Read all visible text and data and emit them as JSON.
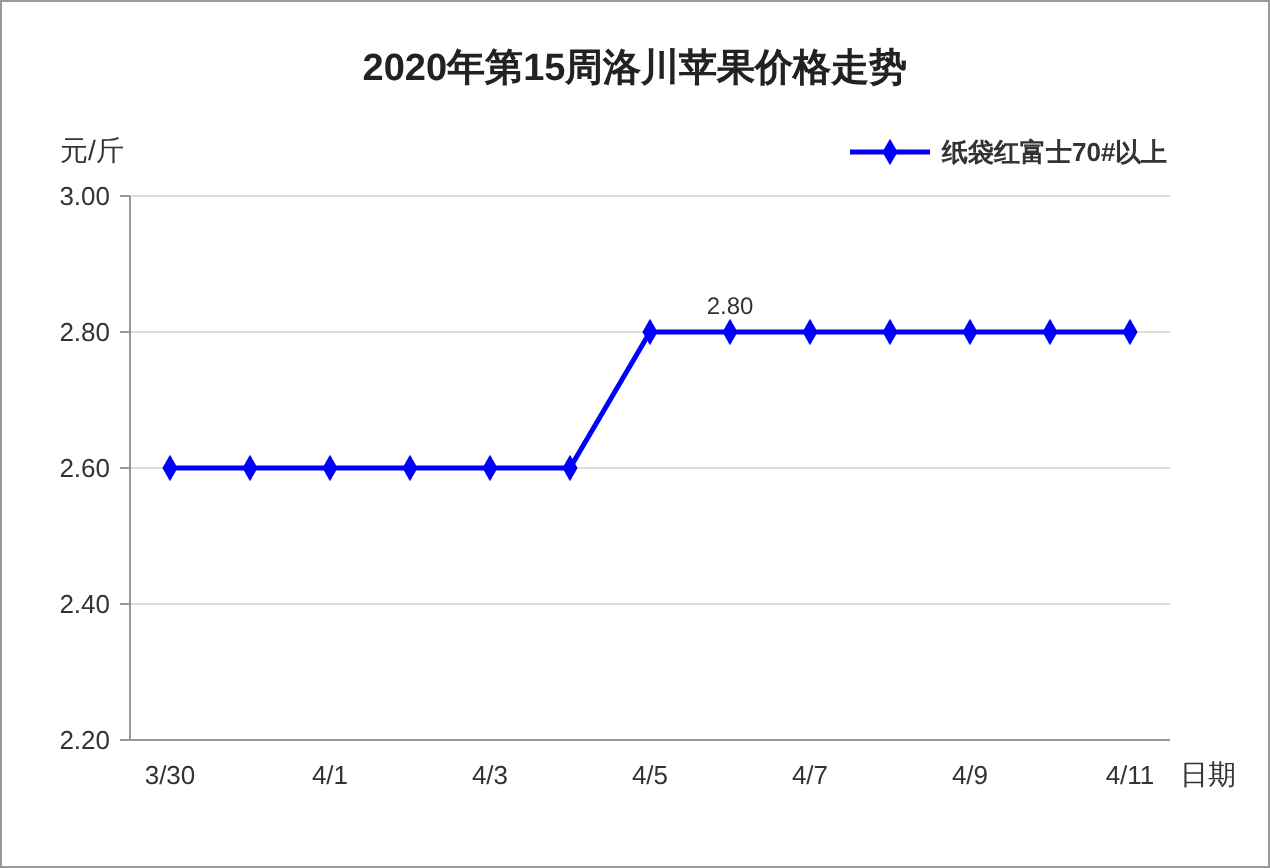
{
  "chart_data": {
    "type": "line",
    "title": "2020年第15周洛川苹果价格走势",
    "xlabel": "日期",
    "ylabel": "元/斤",
    "categories": [
      "3/30",
      null,
      "4/1",
      null,
      "4/3",
      null,
      "4/5",
      null,
      "4/7",
      null,
      "4/9",
      null,
      "4/11"
    ],
    "series": [
      {
        "name": "纸袋红富士70#以上",
        "color": "#0000ff",
        "values": [
          2.6,
          2.6,
          2.6,
          2.6,
          2.6,
          2.6,
          2.8,
          2.8,
          2.8,
          2.8,
          2.8,
          2.8,
          2.8
        ],
        "value_labels": [
          null,
          null,
          null,
          null,
          null,
          null,
          null,
          "2.80",
          null,
          null,
          null,
          null,
          null
        ]
      }
    ],
    "ylim": [
      2.2,
      3.0
    ],
    "yticks": [
      {
        "value": 2.2,
        "label": "2.20"
      },
      {
        "value": 2.4,
        "label": "2.40"
      },
      {
        "value": 2.6,
        "label": "2.60"
      },
      {
        "value": 2.8,
        "label": "2.80"
      },
      {
        "value": 3.0,
        "label": "3.00"
      }
    ],
    "grid": "y",
    "legend": "top right",
    "marker": "diamond",
    "line_style": "solid"
  }
}
